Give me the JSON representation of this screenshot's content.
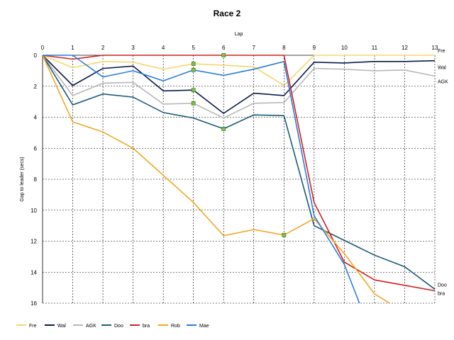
{
  "chart_data": {
    "type": "line",
    "title": "Race 2",
    "xlabel": "Lap",
    "ylabel": "Gap to leader (secs)",
    "xlim": [
      0,
      13
    ],
    "ylim": [
      0,
      16
    ],
    "y_inverted": true,
    "x_axis_position": "top",
    "grid": true,
    "legend_position": "bottom",
    "x_ticks": [
      "0",
      "1",
      "2",
      "3",
      "4",
      "5",
      "6",
      "7",
      "8",
      "9",
      "10",
      "11",
      "12",
      "13"
    ],
    "y_ticks": [
      "0",
      "2",
      "4",
      "6",
      "8",
      "10",
      "12",
      "14",
      "16"
    ],
    "series": [
      {
        "name": "Fre",
        "color": "#f5d76e",
        "x": [
          0,
          1,
          2,
          3,
          4,
          5,
          6,
          7,
          8,
          9,
          10,
          11,
          12,
          13
        ],
        "y": [
          0,
          0.8,
          0.4,
          0.45,
          0.9,
          0.55,
          0.65,
          0.75,
          1.95,
          0,
          0,
          0,
          0,
          0
        ],
        "end_label": "Fre"
      },
      {
        "name": "Wal",
        "color": "#0d1a4a",
        "x": [
          0,
          1,
          2,
          3,
          4,
          5,
          6,
          7,
          8,
          9,
          10,
          11,
          12,
          13
        ],
        "y": [
          0,
          1.95,
          0.85,
          0.7,
          2.3,
          2.25,
          3.75,
          2.45,
          2.6,
          0.45,
          0.5,
          0.4,
          0.4,
          0.35
        ],
        "end_label": "Wal"
      },
      {
        "name": "AGK",
        "color": "#b8b8b8",
        "x": [
          0,
          1,
          2,
          3,
          4,
          5,
          6,
          7,
          8,
          9,
          10,
          11,
          12,
          13
        ],
        "y": [
          0,
          2.6,
          1.8,
          1.75,
          3.15,
          3.1,
          4.05,
          3.1,
          3.05,
          0.85,
          0.9,
          1.0,
          0.95,
          1.35
        ],
        "end_label": "AGK"
      },
      {
        "name": "Doo",
        "color": "#1a5a7a",
        "x": [
          0,
          1,
          2,
          3,
          4,
          5,
          6,
          7,
          8,
          9,
          10,
          11,
          12,
          13
        ],
        "y": [
          0,
          3.2,
          2.5,
          2.7,
          3.7,
          4.05,
          4.75,
          3.85,
          3.9,
          11.0,
          11.95,
          12.9,
          13.65,
          15.1
        ],
        "end_label": "Doo"
      },
      {
        "name": "bra",
        "color": "#d42020",
        "x": [
          0,
          1,
          2,
          3,
          4,
          5,
          6,
          7,
          8,
          9,
          10,
          11,
          12,
          13
        ],
        "y": [
          0,
          0.25,
          0,
          0,
          0,
          0,
          0,
          0,
          0,
          9.5,
          13.35,
          14.5,
          14.85,
          15.2
        ],
        "end_label": "bra"
      },
      {
        "name": "Rob",
        "color": "#f5a623",
        "x": [
          0,
          1,
          2,
          3,
          4,
          5,
          6,
          7,
          8,
          9,
          10,
          11,
          11.5
        ],
        "y": [
          0,
          4.3,
          4.95,
          6.0,
          7.75,
          9.5,
          11.65,
          11.25,
          11.6,
          10.55,
          12.8,
          15.4,
          16.0
        ],
        "end_label": ""
      },
      {
        "name": "Mae",
        "color": "#2a7de1",
        "x": [
          0,
          1,
          2,
          3,
          4,
          5,
          6,
          7,
          8,
          9,
          10,
          10.5
        ],
        "y": [
          0,
          0,
          1.4,
          1.0,
          1.65,
          0.95,
          1.3,
          0.9,
          0.4,
          10.35,
          13.5,
          16.0
        ],
        "end_label": ""
      }
    ],
    "markers": [
      {
        "x": 5,
        "y": 0.55
      },
      {
        "x": 5,
        "y": 0.95
      },
      {
        "x": 5,
        "y": 2.25
      },
      {
        "x": 5,
        "y": 3.1
      },
      {
        "x": 6,
        "y": 0
      },
      {
        "x": 6,
        "y": 4.75
      },
      {
        "x": 8,
        "y": 11.6
      }
    ],
    "marker_color": "#7cc243"
  }
}
